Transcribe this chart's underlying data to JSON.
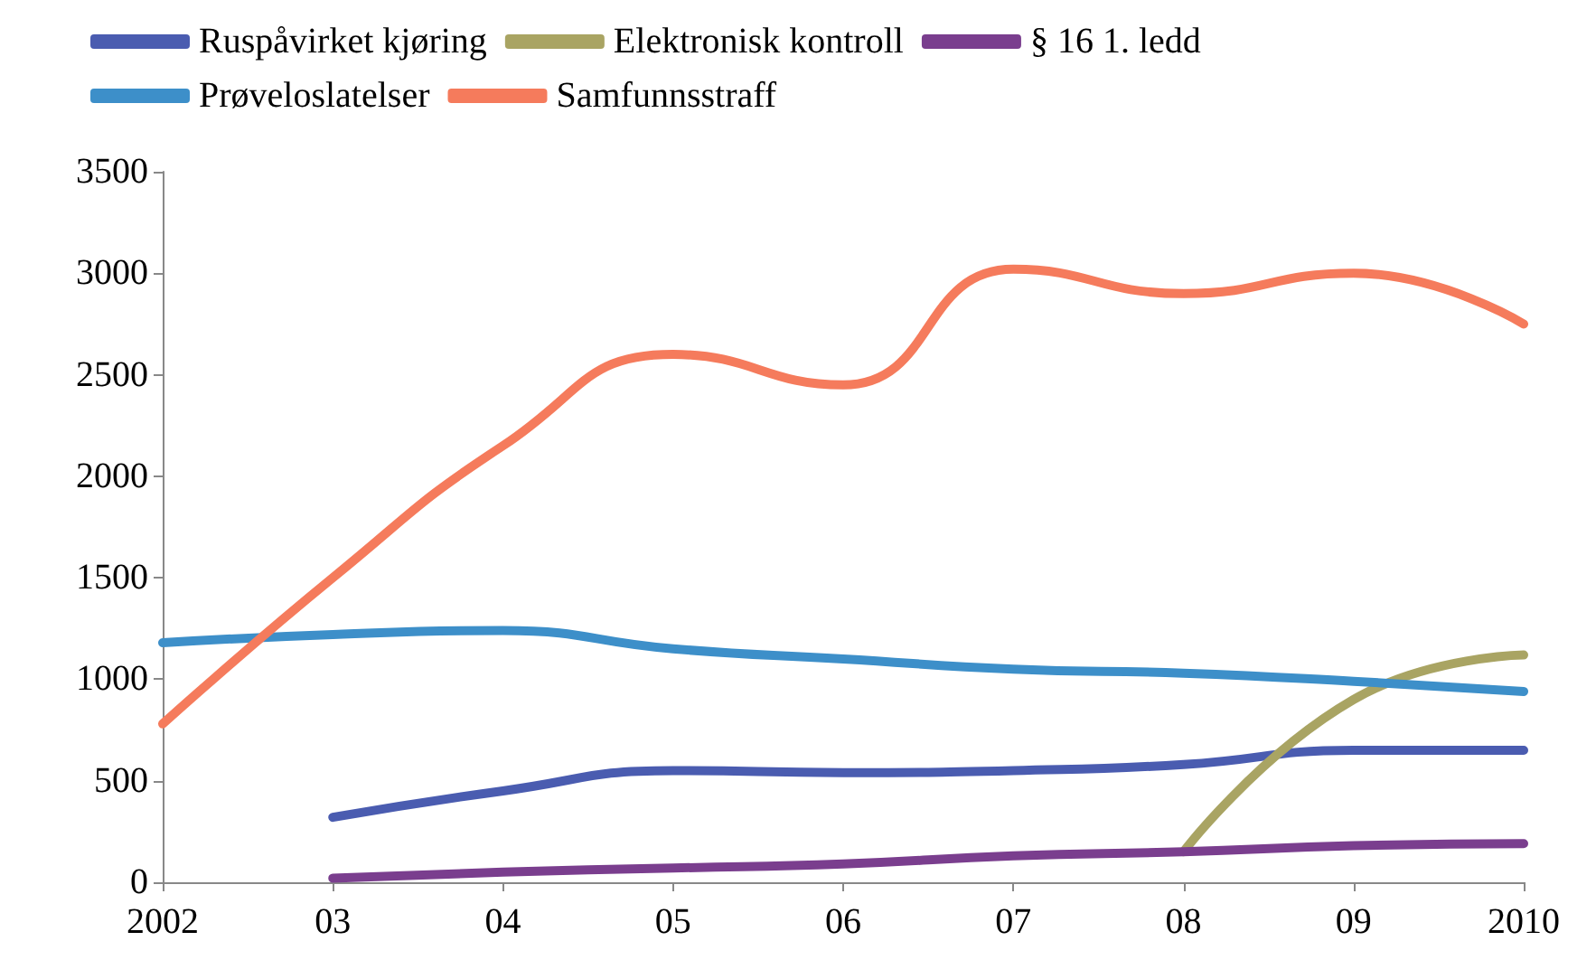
{
  "chart_data": {
    "type": "line",
    "categories": [
      "2002",
      "03",
      "04",
      "05",
      "06",
      "07",
      "08",
      "09",
      "2010"
    ],
    "series": [
      {
        "name": "Ruspåvirket kjøring",
        "color": "#4a5cb0",
        "values": [
          null,
          320,
          450,
          550,
          540,
          550,
          580,
          650,
          650
        ]
      },
      {
        "name": "Elektronisk kontroll",
        "color": "#a9a463",
        "values": [
          null,
          null,
          null,
          null,
          null,
          null,
          150,
          900,
          1120
        ]
      },
      {
        "name": "§ 16 1. ledd",
        "color": "#7a3e8e",
        "values": [
          null,
          20,
          50,
          70,
          90,
          130,
          150,
          180,
          190
        ]
      },
      {
        "name": "Prøveloslatelser",
        "color": "#3d8fc9",
        "values": [
          1180,
          1220,
          1240,
          1150,
          1100,
          1050,
          1030,
          990,
          940
        ]
      },
      {
        "name": "Samfunnsstraff",
        "color": "#f57b5c",
        "values": [
          780,
          1500,
          2150,
          2600,
          2450,
          3020,
          2900,
          3000,
          2750
        ]
      }
    ],
    "ylim": [
      0,
      3500
    ],
    "yticks": [
      0,
      500,
      1000,
      1500,
      2000,
      2500,
      3000,
      3500
    ],
    "grid": false,
    "legend": "top",
    "marker": "none",
    "line_style": "solid"
  }
}
